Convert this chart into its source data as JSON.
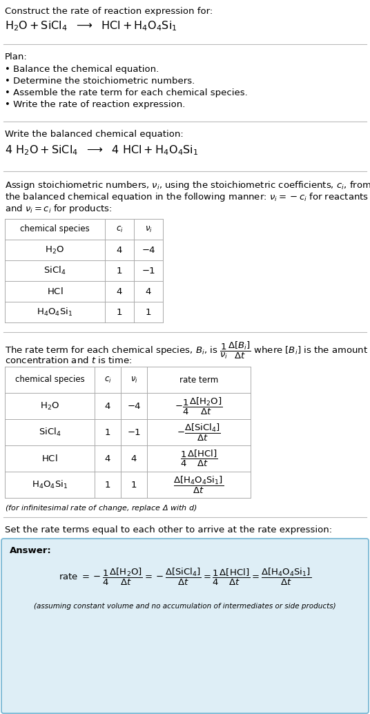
{
  "title_line1": "Construct the rate of reaction expression for:",
  "plan_header": "Plan:",
  "plan_items": [
    "• Balance the chemical equation.",
    "• Determine the stoichiometric numbers.",
    "• Assemble the rate term for each chemical species.",
    "• Write the rate of reaction expression."
  ],
  "balanced_header": "Write the balanced chemical equation:",
  "stoich_intro_lines": [
    "Assign stoichiometric numbers, $\\nu_i$, using the stoichiometric coefficients, $c_i$, from",
    "the balanced chemical equation in the following manner: $\\nu_i = -c_i$ for reactants",
    "and $\\nu_i = c_i$ for products:"
  ],
  "table1_rows": [
    [
      "$\\mathrm{H_2O}$",
      "4",
      "−4"
    ],
    [
      "$\\mathrm{SiCl_4}$",
      "1",
      "−1"
    ],
    [
      "$\\mathrm{HCl}$",
      "4",
      "4"
    ],
    [
      "$\\mathrm{H_4O_4Si_1}$",
      "1",
      "1"
    ]
  ],
  "rate_intro_line1": "The rate term for each chemical species, $B_i$, is $\\dfrac{1}{\\nu_i}\\dfrac{\\Delta[B_i]}{\\Delta t}$ where $[B_i]$ is the amount",
  "rate_intro_line2": "concentration and $t$ is time:",
  "table2_rows": [
    [
      "$\\mathrm{H_2O}$",
      "4",
      "−4"
    ],
    [
      "$\\mathrm{SiCl_4}$",
      "1",
      "−1"
    ],
    [
      "$\\mathrm{HCl}$",
      "4",
      "4"
    ],
    [
      "$\\mathrm{H_4O_4Si_1}$",
      "1",
      "1"
    ]
  ],
  "rate_terms": [
    "$-\\dfrac{1}{4}\\dfrac{\\Delta[\\mathrm{H_2O}]}{\\Delta t}$",
    "$-\\dfrac{\\Delta[\\mathrm{SiCl_4}]}{\\Delta t}$",
    "$\\dfrac{1}{4}\\dfrac{\\Delta[\\mathrm{HCl}]}{\\Delta t}$",
    "$\\dfrac{\\Delta[\\mathrm{H_4O_4Si_1}]}{\\Delta t}$"
  ],
  "infinitesimal_note": "(for infinitesimal rate of change, replace Δ with $d$)",
  "set_equal_text": "Set the rate terms equal to each other to arrive at the rate expression:",
  "answer_label": "Answer:",
  "answer_box_color": "#deeef6",
  "answer_border_color": "#7ab8d4",
  "bg_color": "#ffffff",
  "text_color": "#000000",
  "separator_color": "#bbbbbb",
  "table_border_color": "#aaaaaa",
  "font_size": 9.5,
  "font_size_small": 8.0,
  "font_size_eq": 11.5
}
